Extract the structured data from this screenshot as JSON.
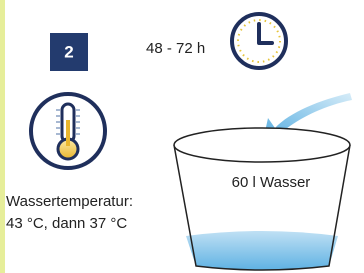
{
  "step": {
    "number": "2"
  },
  "duration": {
    "label": "48 - 72 h"
  },
  "water": {
    "label": "60 l Wasser"
  },
  "temperature": {
    "lines": [
      "Wassertemperatur:",
      "43 °C, dann 37 °C"
    ]
  }
}
